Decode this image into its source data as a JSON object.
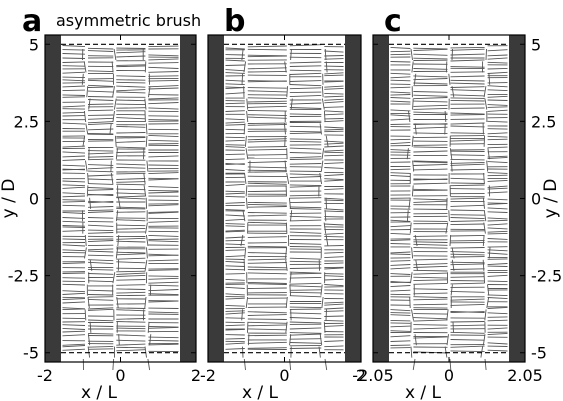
{
  "chart_data": [
    {
      "type": "other",
      "panel_label": "a",
      "title": "asymmetric brush",
      "xlabel": "x / L",
      "ylabel": "y / D",
      "xlim": [
        -2,
        2
      ],
      "ylim": [
        -5.3,
        5.3
      ],
      "x_ticks": [
        "-2",
        "0",
        "2"
      ],
      "y_ticks": [
        "5",
        "2.5",
        "0",
        "-2.5",
        "-5"
      ],
      "wall_color": "#3a3a3a",
      "strand_color": "#555555",
      "domain_splits": [
        -0.9,
        -0.15,
        0.7
      ]
    },
    {
      "type": "other",
      "panel_label": "b",
      "title": "",
      "xlabel": "x / L",
      "ylabel": "",
      "xlim": [
        -2,
        2
      ],
      "ylim": [
        -5.3,
        5.3
      ],
      "x_ticks": [
        "-2",
        "0",
        "2"
      ],
      "y_ticks": [],
      "wall_color": "#3a3a3a",
      "strand_color": "#555555",
      "domain_splits": [
        -1.0,
        0.1,
        1.0
      ]
    },
    {
      "type": "other",
      "panel_label": "c",
      "title": "",
      "xlabel": "x / L",
      "ylabel": "y / D",
      "xlim": [
        -2.05,
        2.05
      ],
      "ylim": [
        -5.3,
        5.3
      ],
      "x_ticks": [
        "-2.05",
        "0",
        "2.05"
      ],
      "y_ticks": [
        "5",
        "2.5",
        "0",
        "-2.5",
        "-5"
      ],
      "wall_color": "#3a3a3a",
      "strand_color": "#555555",
      "domain_splits": [
        -1.0,
        0.0,
        1.0
      ]
    }
  ]
}
